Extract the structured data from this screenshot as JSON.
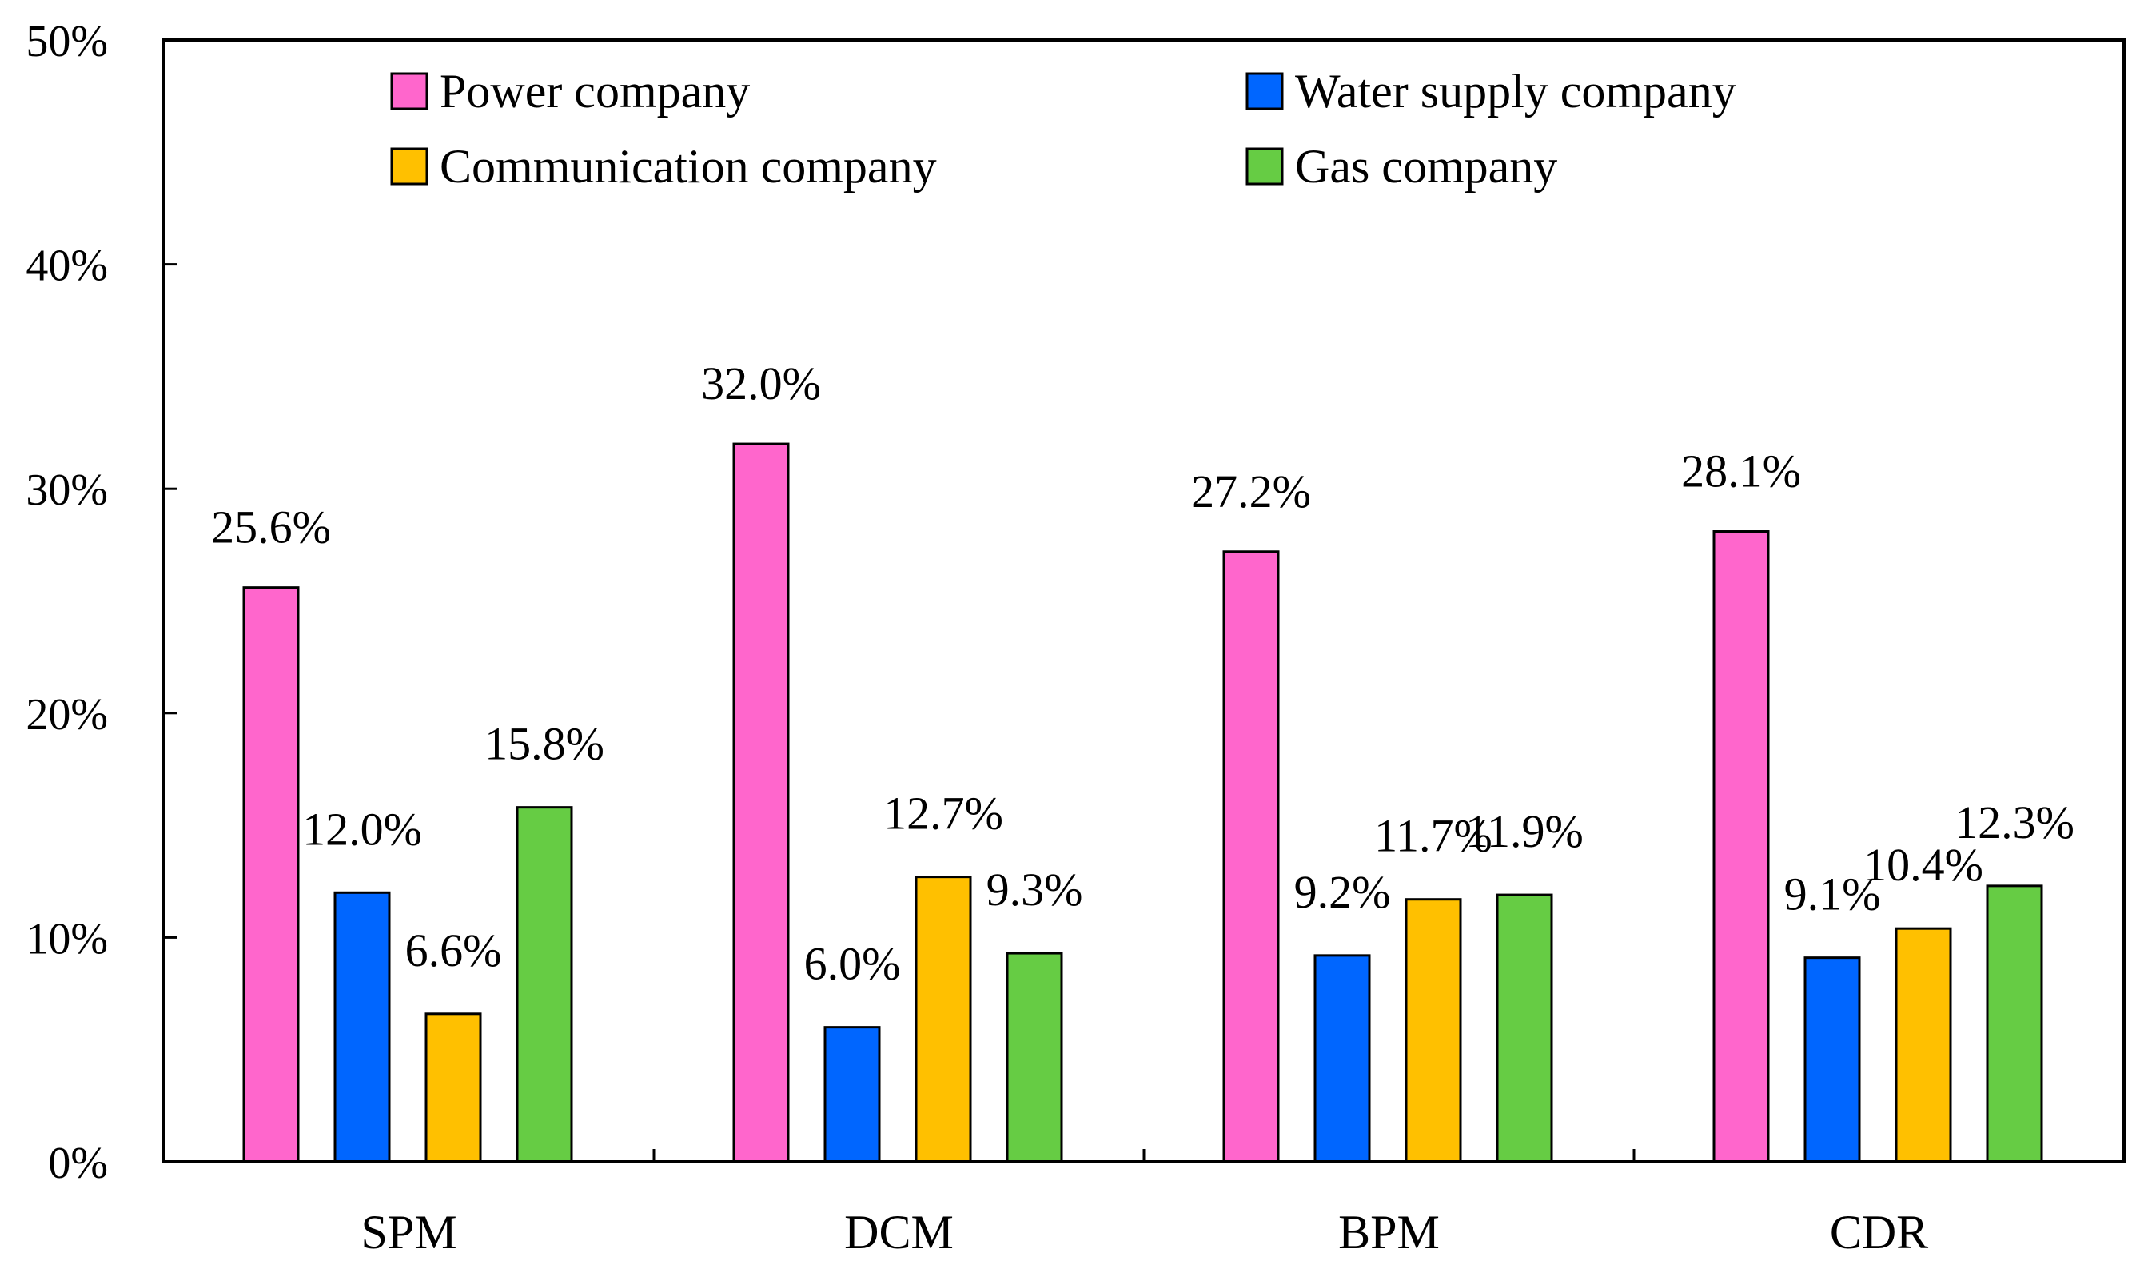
{
  "chart_data": {
    "type": "bar",
    "title": "",
    "xlabel": "",
    "ylabel": "",
    "categories": [
      "SPM",
      "DCM",
      "BPM",
      "CDR"
    ],
    "series": [
      {
        "name": "Power company",
        "color": "#ff66cc",
        "values": [
          25.6,
          32.0,
          27.2,
          28.1
        ],
        "labels": [
          "25.6%",
          "32.0%",
          "27.2%",
          "28.1%"
        ]
      },
      {
        "name": "Water supply company",
        "color": "#0066ff",
        "values": [
          12.0,
          6.0,
          9.2,
          9.1
        ],
        "labels": [
          "12.0%",
          "6.0%",
          "9.2%",
          "9.1%"
        ]
      },
      {
        "name": "Communication company",
        "color": "#ffc000",
        "values": [
          6.6,
          12.7,
          11.7,
          10.4
        ],
        "labels": [
          "6.6%",
          "12.7%",
          "11.7%",
          "10.4%"
        ]
      },
      {
        "name": "Gas company",
        "color": "#66cc44",
        "values": [
          15.8,
          9.3,
          11.9,
          12.3
        ],
        "labels": [
          "15.8%",
          "9.3%",
          "11.9%",
          "12.3%"
        ]
      }
    ],
    "ylim": [
      0,
      50
    ],
    "yticks": [
      0,
      10,
      20,
      30,
      40,
      50
    ],
    "ytick_labels": [
      "0%",
      "10%",
      "20%",
      "30%",
      "40%",
      "50%"
    ],
    "grid": false,
    "legend_position": "top"
  }
}
